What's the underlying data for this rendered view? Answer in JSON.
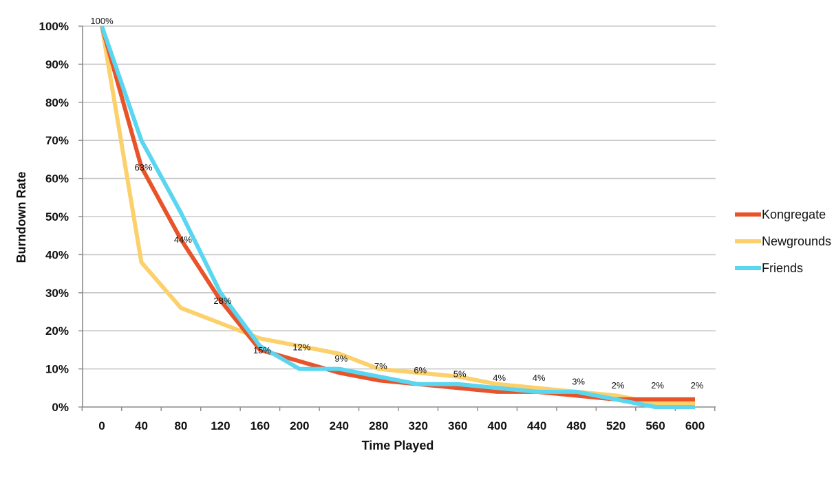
{
  "chart_data": {
    "type": "line",
    "xlabel": "Time Played",
    "ylabel": "Burndown Rate",
    "x": [
      0,
      40,
      80,
      120,
      160,
      200,
      240,
      280,
      320,
      360,
      400,
      440,
      480,
      520,
      560,
      600
    ],
    "x_tick_labels": [
      "0",
      "40",
      "80",
      "120",
      "160",
      "200",
      "240",
      "280",
      "320",
      "360",
      "400",
      "440",
      "480",
      "520",
      "560",
      "600"
    ],
    "y_tick_labels": [
      "0%",
      "10%",
      "20%",
      "30%",
      "40%",
      "50%",
      "60%",
      "70%",
      "80%",
      "90%",
      "100%"
    ],
    "ylim": [
      0,
      100
    ],
    "grid": true,
    "legend_position": "right",
    "series": [
      {
        "name": "Kongregate",
        "color": "#e8532a",
        "values": [
          100,
          63,
          44,
          28,
          15,
          12,
          9,
          7,
          6,
          5,
          4,
          4,
          3,
          2,
          2,
          2
        ],
        "labels": [
          "100%",
          "63%",
          "44%",
          "28%",
          "15%",
          "12%",
          "9%",
          "7%",
          "6%",
          "5%",
          "4%",
          "4%",
          "3%",
          "2%",
          "2%",
          "2%"
        ]
      },
      {
        "name": "Newgrounds",
        "color": "#fcd06a",
        "values": [
          100,
          38,
          26,
          22,
          18,
          16,
          14,
          10,
          9,
          8,
          6,
          5,
          4,
          3,
          1,
          1
        ]
      },
      {
        "name": "Friends",
        "color": "#5ad6f0",
        "values": [
          100,
          70,
          51,
          30,
          16,
          10,
          10,
          8,
          6,
          6,
          5,
          4,
          4,
          2,
          0,
          0
        ]
      }
    ]
  }
}
